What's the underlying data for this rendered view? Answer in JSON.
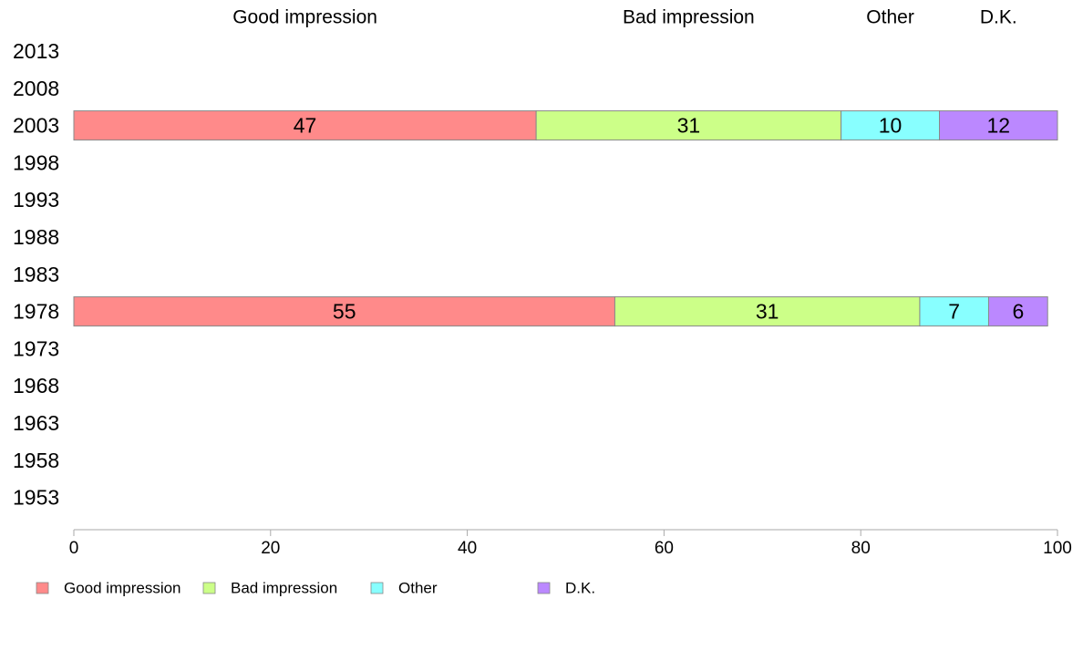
{
  "chart_data": {
    "type": "bar",
    "orientation": "horizontal-stacked",
    "title": "",
    "xlabel": "",
    "ylabel": "",
    "xlim": [
      0,
      100
    ],
    "x_ticks": [
      0,
      20,
      40,
      60,
      80,
      100
    ],
    "x_tick_labels": [
      "0",
      "20",
      "40",
      "60",
      "80",
      "100"
    ],
    "categories": [
      "2013",
      "2008",
      "2003",
      "1998",
      "1993",
      "1988",
      "1983",
      "1978",
      "1973",
      "1968",
      "1963",
      "1958",
      "1953"
    ],
    "series": [
      {
        "name": "Good impression",
        "color": "#ff8a8a",
        "values": [
          null,
          null,
          47,
          null,
          null,
          null,
          null,
          55,
          null,
          null,
          null,
          null,
          null
        ]
      },
      {
        "name": "Bad impression",
        "color": "#ccff88",
        "values": [
          null,
          null,
          31,
          null,
          null,
          null,
          null,
          31,
          null,
          null,
          null,
          null,
          null
        ]
      },
      {
        "name": "Other",
        "color": "#88ffff",
        "values": [
          null,
          null,
          10,
          null,
          null,
          null,
          null,
          7,
          null,
          null,
          null,
          null,
          null
        ]
      },
      {
        "name": "D.K.",
        "color": "#bb88ff",
        "values": [
          null,
          null,
          12,
          null,
          null,
          null,
          null,
          6,
          null,
          null,
          null,
          null,
          null
        ]
      }
    ],
    "header_labels": [
      "Good impression",
      "Bad impression",
      "Other",
      "D.K."
    ],
    "grid": false,
    "legend_position": "bottom-left"
  }
}
